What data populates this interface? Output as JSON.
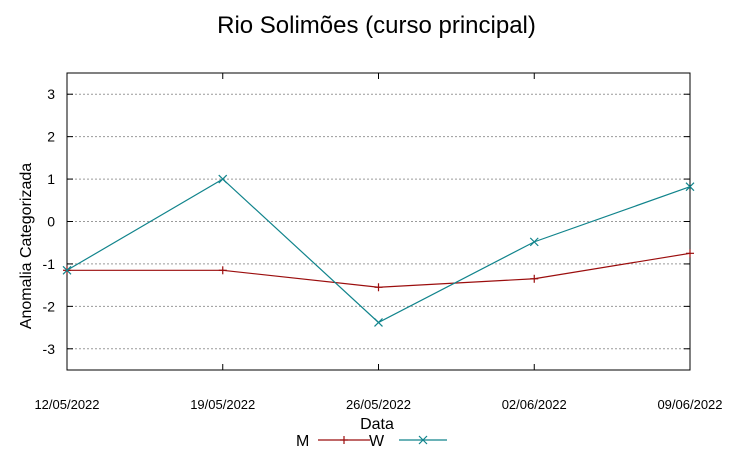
{
  "chart_data": {
    "type": "line",
    "title": "Rio Solimões (curso principal)",
    "xlabel": "Data",
    "ylabel": "Anomalia Categorizada",
    "categories": [
      "12/05/2022",
      "19/05/2022",
      "26/05/2022",
      "02/06/2022",
      "09/06/2022"
    ],
    "yticks": [
      3,
      2,
      1,
      0,
      -1,
      -2,
      -3
    ],
    "ylim": [
      -3.5,
      3.5
    ],
    "grid": true,
    "legend_position": "bottom",
    "series": [
      {
        "name": "M",
        "color": "#9b0d0d",
        "marker": "plus",
        "values": [
          -1.15,
          -1.15,
          -1.55,
          -1.35,
          -0.75
        ]
      },
      {
        "name": "W",
        "color": "#11848c",
        "marker": "cross",
        "values": [
          -1.15,
          1.0,
          -2.38,
          -0.48,
          0.82
        ]
      }
    ]
  }
}
